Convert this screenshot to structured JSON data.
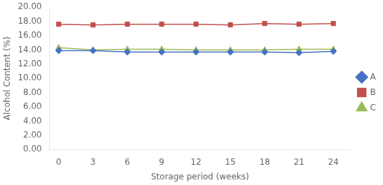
{
  "chart_data": {
    "type": "line",
    "xlabel": "Storage period (weeks)",
    "ylabel": "Alcohol Content (%)",
    "x": [
      0,
      3,
      6,
      9,
      12,
      15,
      18,
      21,
      24
    ],
    "series": [
      {
        "name": "A",
        "color": "#4472C4",
        "marker": "diamond",
        "values": [
          13.9,
          13.9,
          13.7,
          13.7,
          13.7,
          13.7,
          13.7,
          13.6,
          13.8
        ]
      },
      {
        "name": "B",
        "color": "#C0504D",
        "marker": "square",
        "values": [
          17.6,
          17.5,
          17.6,
          17.6,
          17.6,
          17.5,
          17.7,
          17.6,
          17.7
        ]
      },
      {
        "name": "C",
        "color": "#9BBB59",
        "marker": "triangle",
        "values": [
          14.3,
          14.0,
          14.1,
          14.1,
          14.0,
          14.0,
          14.0,
          14.1,
          14.1
        ]
      }
    ],
    "xlim": [
      -0.8,
      25.5
    ],
    "xticks": [
      0,
      3,
      6,
      9,
      12,
      15,
      18,
      21,
      24
    ],
    "ylim": [
      0,
      20
    ],
    "yticks": [
      {
        "value": 0,
        "label": "0.00"
      },
      {
        "value": 2,
        "label": "2.00"
      },
      {
        "value": 4,
        "label": "4.00"
      },
      {
        "value": 6,
        "label": "6.00"
      },
      {
        "value": 8,
        "label": "8.00"
      },
      {
        "value": 10,
        "label": "10.00"
      },
      {
        "value": 12,
        "label": "12.00"
      },
      {
        "value": 14,
        "label": "14.00"
      },
      {
        "value": 16,
        "label": "16.00"
      },
      {
        "value": 18,
        "label": "18.00"
      },
      {
        "value": 20,
        "label": "20.00"
      }
    ],
    "grid": false,
    "legend": "right"
  }
}
